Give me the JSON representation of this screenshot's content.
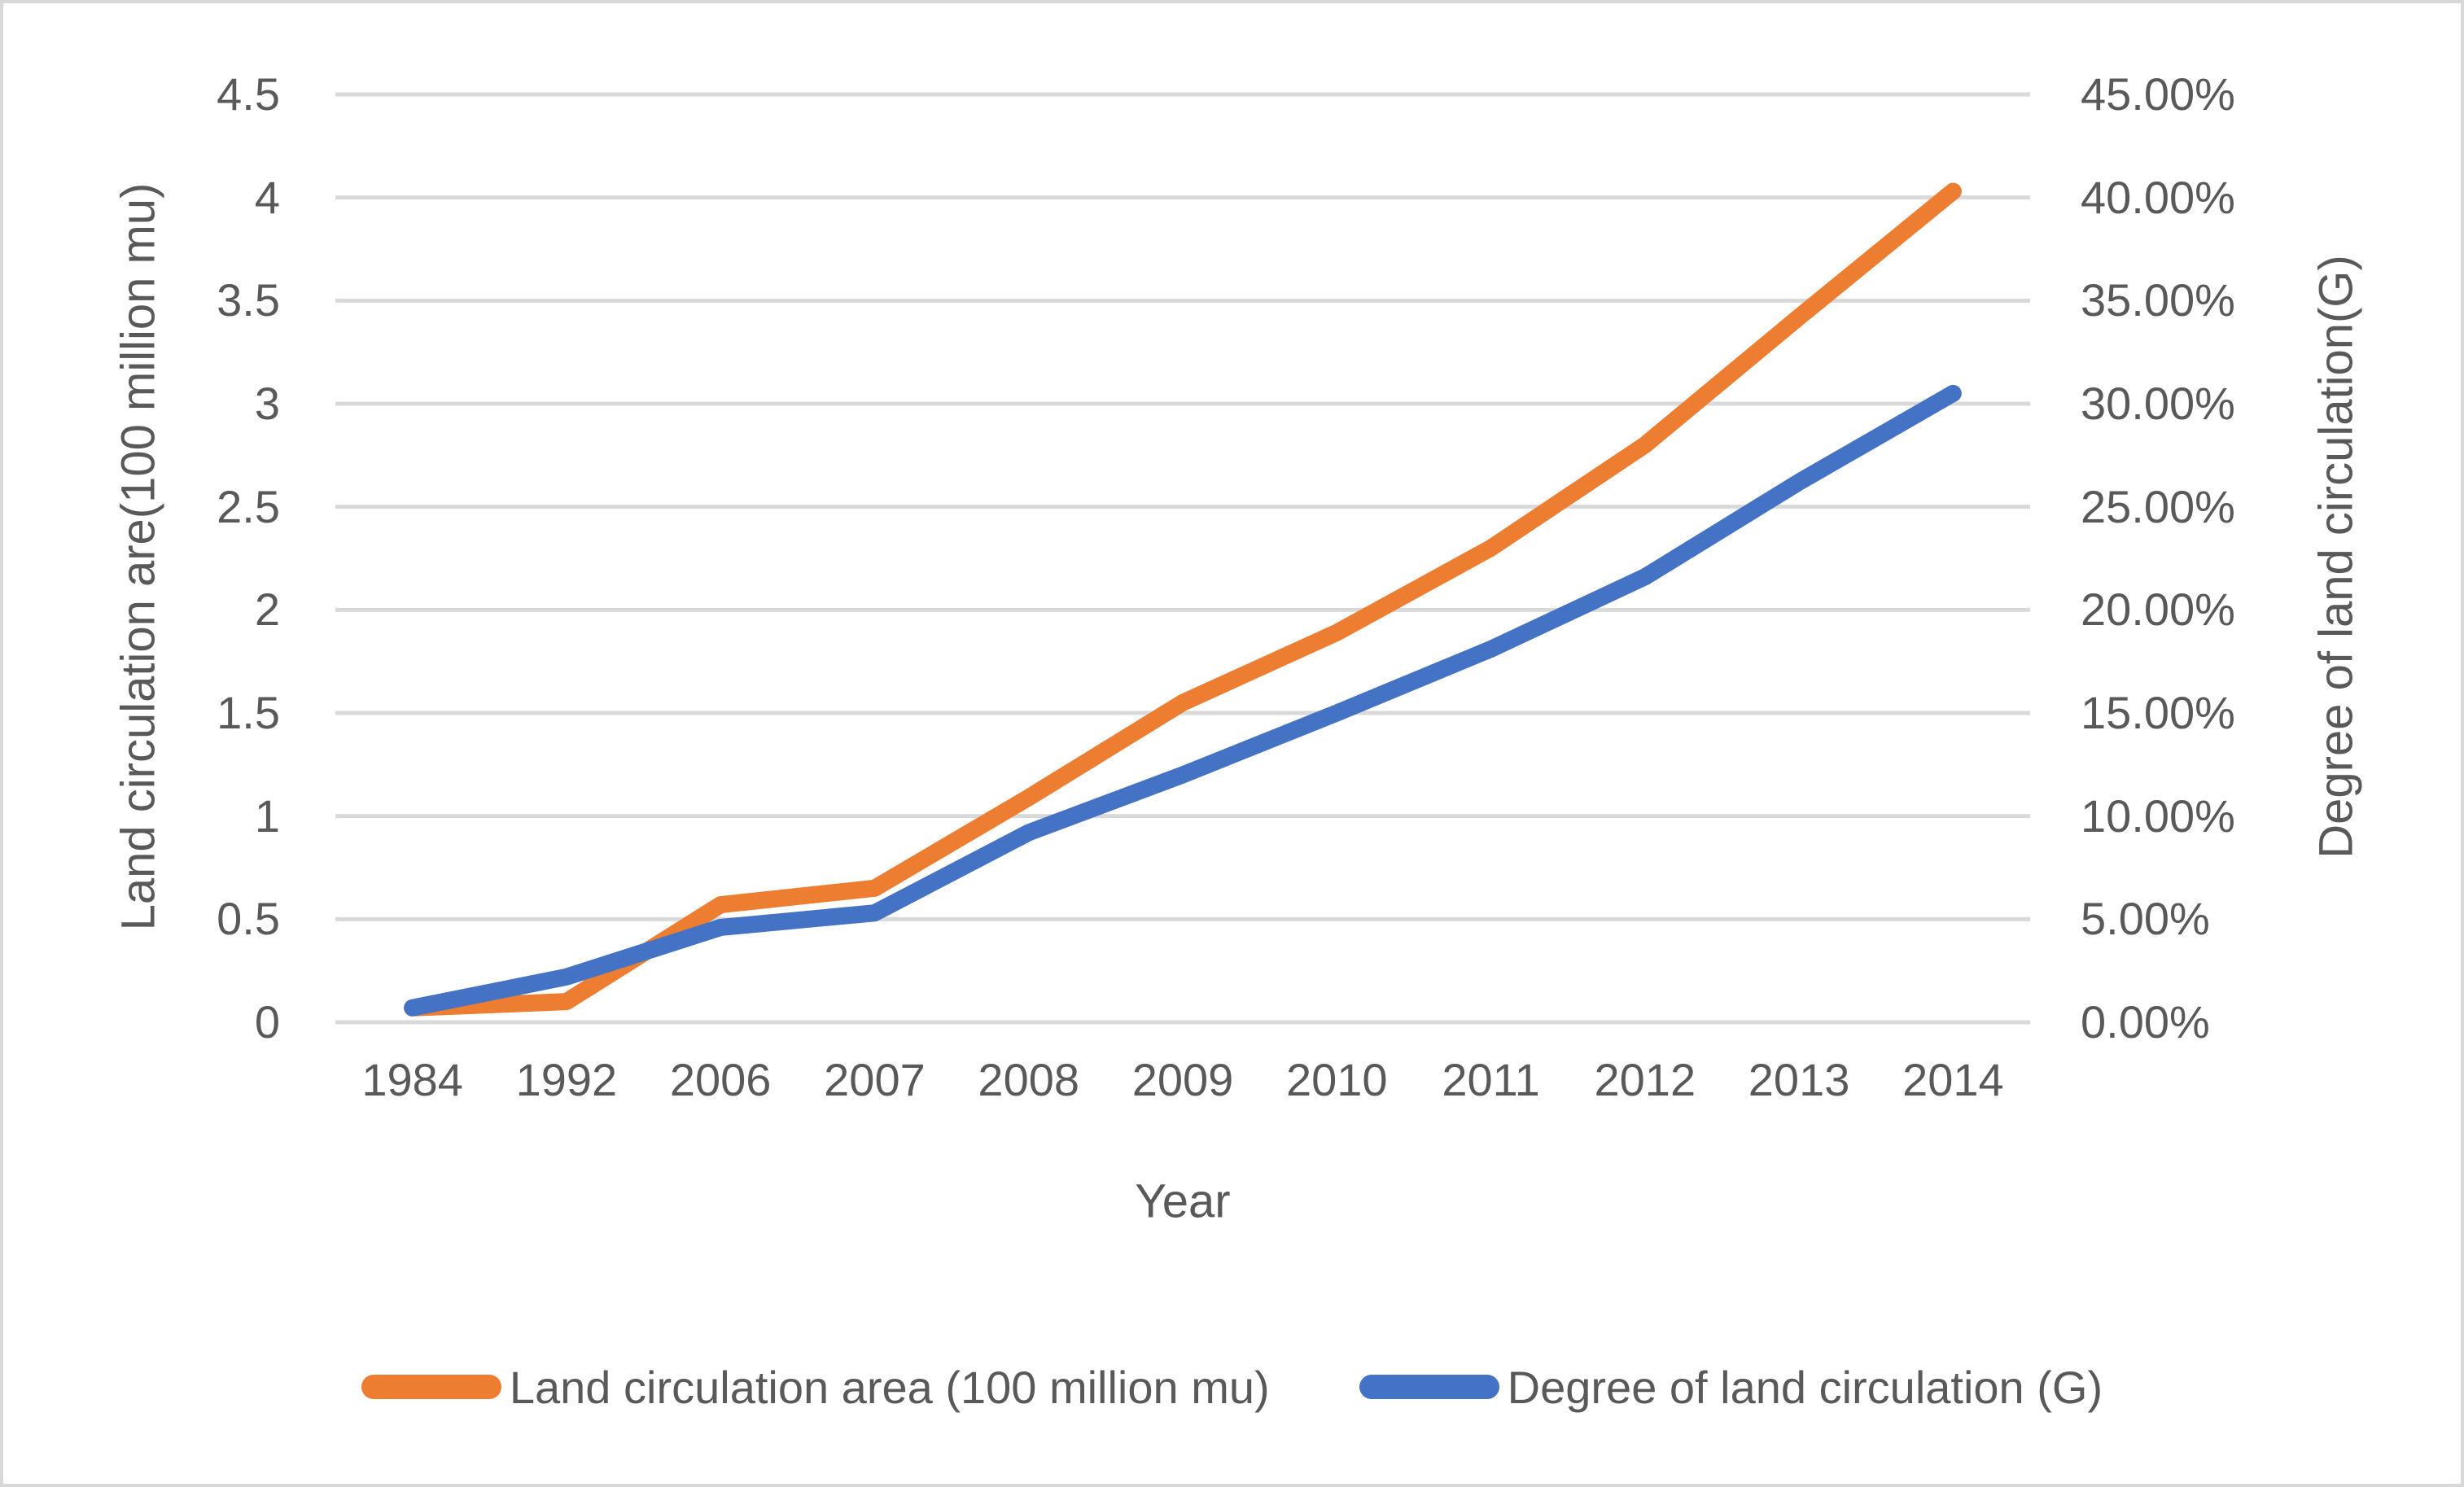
{
  "chart_data": {
    "type": "line",
    "title": "",
    "xlabel": "Year",
    "x_categories": [
      "1984",
      "1992",
      "2006",
      "2007",
      "2008",
      "2009",
      "2010",
      "2011",
      "2012",
      "2013",
      "2014"
    ],
    "left_axis": {
      "label": "Land circulation are(100 million mu)",
      "min": 0,
      "max": 4.5,
      "step": 0.5,
      "tick_labels": [
        "0",
        "0.5",
        "1",
        "1.5",
        "2",
        "2.5",
        "3",
        "3.5",
        "4",
        "4.5"
      ]
    },
    "right_axis": {
      "label": "Degree of land circulation(G)",
      "min": 0,
      "max": 45,
      "step": 5,
      "tick_labels": [
        "0.00%",
        "5.00%",
        "10.00%",
        "15.00%",
        "20.00%",
        "25.00%",
        "30.00%",
        "35.00%",
        "40.00%",
        "45.00%"
      ]
    },
    "series": [
      {
        "name": "Land circulation area (100 million mu)",
        "axis": "left",
        "color": "#ED7D31",
        "values": [
          0.07,
          0.1,
          0.57,
          0.65,
          1.09,
          1.55,
          1.89,
          2.3,
          2.8,
          3.42,
          4.03
        ]
      },
      {
        "name": "Degree of land circulation (G)",
        "axis": "right",
        "color": "#4472C4",
        "values": [
          0.7,
          2.2,
          4.6,
          5.3,
          9.2,
          12.0,
          15.0,
          18.1,
          21.6,
          26.2,
          30.5
        ]
      }
    ],
    "legend": {
      "position": "bottom",
      "entries": [
        "Land circulation area (100 million mu)",
        "Degree of land circulation (G)"
      ]
    },
    "grid": true
  },
  "colors": {
    "text": "#595959",
    "grid": "#D9D9D9",
    "border": "#D8D8D8",
    "background": "#FFFFFF"
  }
}
